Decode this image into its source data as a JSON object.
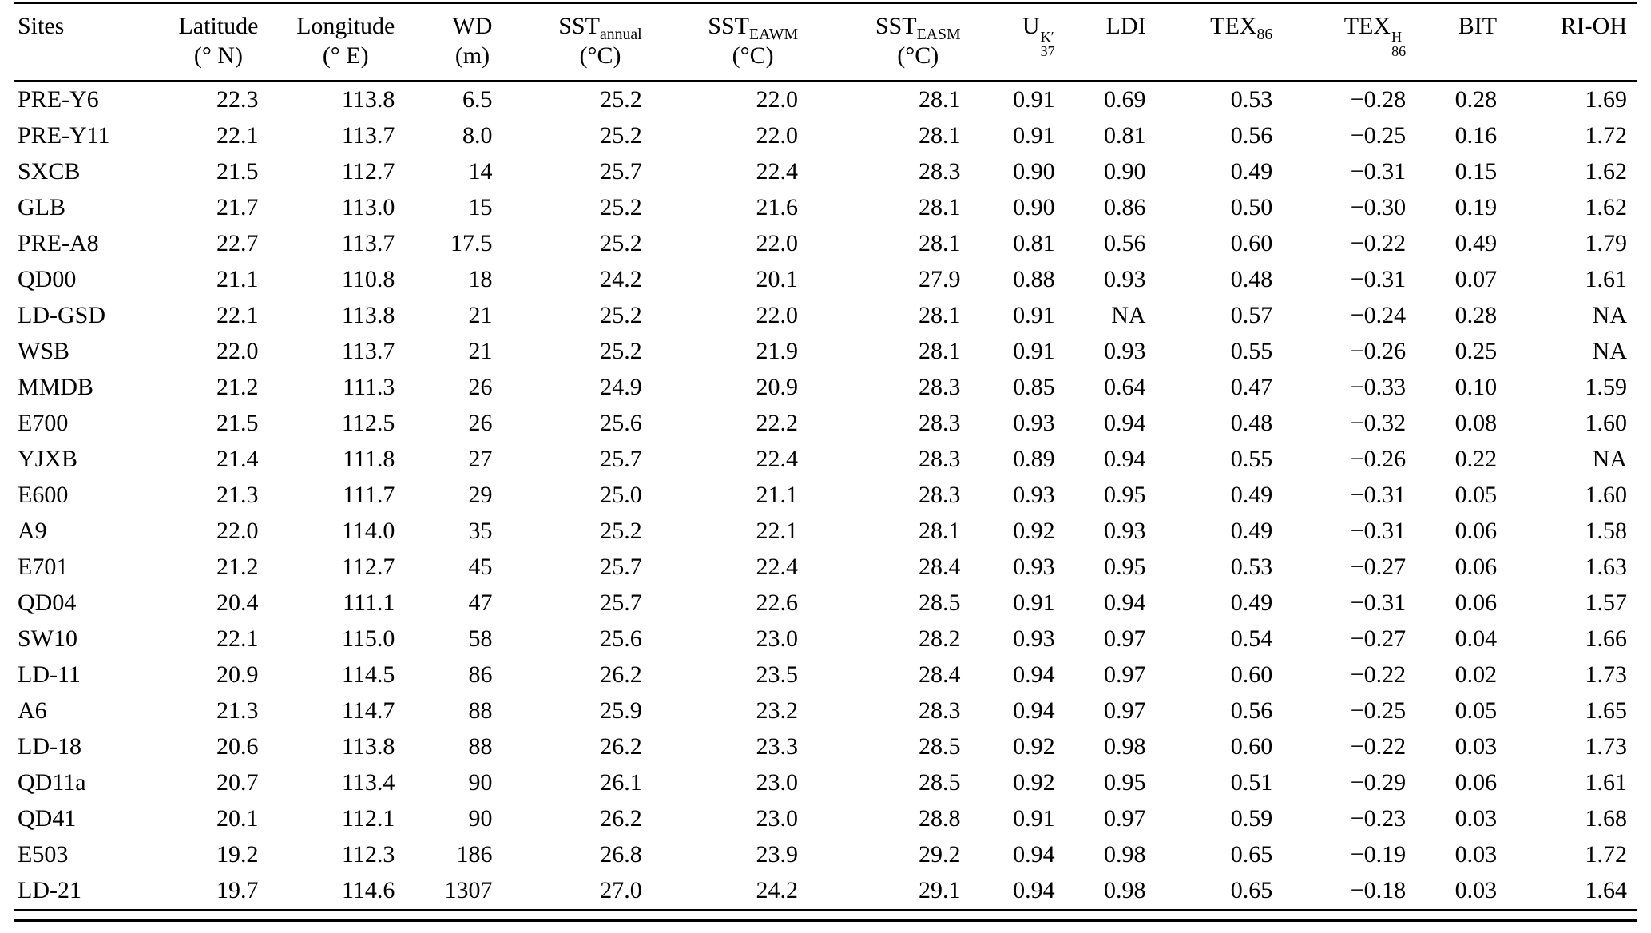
{
  "table": {
    "columns": [
      {
        "label": "Sites",
        "unit": ""
      },
      {
        "label": "Latitude",
        "unit": "(° N)"
      },
      {
        "label": "Longitude",
        "unit": "(° E)"
      },
      {
        "label": "WD",
        "unit": "(m)"
      },
      {
        "label": "SST",
        "sub": "annual",
        "unit": "(°C)"
      },
      {
        "label": "SST",
        "sub": "EAWM",
        "unit": "(°C)"
      },
      {
        "label": "SST",
        "sub": "EASM",
        "unit": "(°C)"
      },
      {
        "label": "U",
        "sup": "K′",
        "sub": "37",
        "unit": ""
      },
      {
        "label": "LDI",
        "unit": ""
      },
      {
        "label": "TEX",
        "sub": "86",
        "unit": ""
      },
      {
        "label": "TEX",
        "sup": "H",
        "sub": "86",
        "unit": ""
      },
      {
        "label": "BIT",
        "unit": ""
      },
      {
        "label": "RI-OH",
        "unit": ""
      }
    ],
    "rows": [
      [
        "PRE-Y6",
        "22.3",
        "113.8",
        "6.5",
        "25.2",
        "22.0",
        "28.1",
        "0.91",
        "0.69",
        "0.53",
        "−0.28",
        "0.28",
        "1.69"
      ],
      [
        "PRE-Y11",
        "22.1",
        "113.7",
        "8.0",
        "25.2",
        "22.0",
        "28.1",
        "0.91",
        "0.81",
        "0.56",
        "−0.25",
        "0.16",
        "1.72"
      ],
      [
        "SXCB",
        "21.5",
        "112.7",
        "14",
        "25.7",
        "22.4",
        "28.3",
        "0.90",
        "0.90",
        "0.49",
        "−0.31",
        "0.15",
        "1.62"
      ],
      [
        "GLB",
        "21.7",
        "113.0",
        "15",
        "25.2",
        "21.6",
        "28.1",
        "0.90",
        "0.86",
        "0.50",
        "−0.30",
        "0.19",
        "1.62"
      ],
      [
        "PRE-A8",
        "22.7",
        "113.7",
        "17.5",
        "25.2",
        "22.0",
        "28.1",
        "0.81",
        "0.56",
        "0.60",
        "−0.22",
        "0.49",
        "1.79"
      ],
      [
        "QD00",
        "21.1",
        "110.8",
        "18",
        "24.2",
        "20.1",
        "27.9",
        "0.88",
        "0.93",
        "0.48",
        "−0.31",
        "0.07",
        "1.61"
      ],
      [
        "LD-GSD",
        "22.1",
        "113.8",
        "21",
        "25.2",
        "22.0",
        "28.1",
        "0.91",
        "NA",
        "0.57",
        "−0.24",
        "0.28",
        "NA"
      ],
      [
        "WSB",
        "22.0",
        "113.7",
        "21",
        "25.2",
        "21.9",
        "28.1",
        "0.91",
        "0.93",
        "0.55",
        "−0.26",
        "0.25",
        "NA"
      ],
      [
        "MMDB",
        "21.2",
        "111.3",
        "26",
        "24.9",
        "20.9",
        "28.3",
        "0.85",
        "0.64",
        "0.47",
        "−0.33",
        "0.10",
        "1.59"
      ],
      [
        "E700",
        "21.5",
        "112.5",
        "26",
        "25.6",
        "22.2",
        "28.3",
        "0.93",
        "0.94",
        "0.48",
        "−0.32",
        "0.08",
        "1.60"
      ],
      [
        "YJXB",
        "21.4",
        "111.8",
        "27",
        "25.7",
        "22.4",
        "28.3",
        "0.89",
        "0.94",
        "0.55",
        "−0.26",
        "0.22",
        "NA"
      ],
      [
        "E600",
        "21.3",
        "111.7",
        "29",
        "25.0",
        "21.1",
        "28.3",
        "0.93",
        "0.95",
        "0.49",
        "−0.31",
        "0.05",
        "1.60"
      ],
      [
        "A9",
        "22.0",
        "114.0",
        "35",
        "25.2",
        "22.1",
        "28.1",
        "0.92",
        "0.93",
        "0.49",
        "−0.31",
        "0.06",
        "1.58"
      ],
      [
        "E701",
        "21.2",
        "112.7",
        "45",
        "25.7",
        "22.4",
        "28.4",
        "0.93",
        "0.95",
        "0.53",
        "−0.27",
        "0.06",
        "1.63"
      ],
      [
        "QD04",
        "20.4",
        "111.1",
        "47",
        "25.7",
        "22.6",
        "28.5",
        "0.91",
        "0.94",
        "0.49",
        "−0.31",
        "0.06",
        "1.57"
      ],
      [
        "SW10",
        "22.1",
        "115.0",
        "58",
        "25.6",
        "23.0",
        "28.2",
        "0.93",
        "0.97",
        "0.54",
        "−0.27",
        "0.04",
        "1.66"
      ],
      [
        "LD-11",
        "20.9",
        "114.5",
        "86",
        "26.2",
        "23.5",
        "28.4",
        "0.94",
        "0.97",
        "0.60",
        "−0.22",
        "0.02",
        "1.73"
      ],
      [
        "A6",
        "21.3",
        "114.7",
        "88",
        "25.9",
        "23.2",
        "28.3",
        "0.94",
        "0.97",
        "0.56",
        "−0.25",
        "0.05",
        "1.65"
      ],
      [
        "LD-18",
        "20.6",
        "113.8",
        "88",
        "26.2",
        "23.3",
        "28.5",
        "0.92",
        "0.98",
        "0.60",
        "−0.22",
        "0.03",
        "1.73"
      ],
      [
        "QD11a",
        "20.7",
        "113.4",
        "90",
        "26.1",
        "23.0",
        "28.5",
        "0.92",
        "0.95",
        "0.51",
        "−0.29",
        "0.06",
        "1.61"
      ],
      [
        "QD41",
        "20.1",
        "112.1",
        "90",
        "26.2",
        "23.0",
        "28.8",
        "0.91",
        "0.97",
        "0.59",
        "−0.23",
        "0.03",
        "1.68"
      ],
      [
        "E503",
        "19.2",
        "112.3",
        "186",
        "26.8",
        "23.9",
        "29.2",
        "0.94",
        "0.98",
        "0.65",
        "−0.19",
        "0.03",
        "1.72"
      ],
      [
        "LD-21",
        "19.7",
        "114.6",
        "1307",
        "27.0",
        "24.2",
        "29.1",
        "0.94",
        "0.98",
        "0.65",
        "−0.18",
        "0.03",
        "1.64"
      ]
    ]
  }
}
